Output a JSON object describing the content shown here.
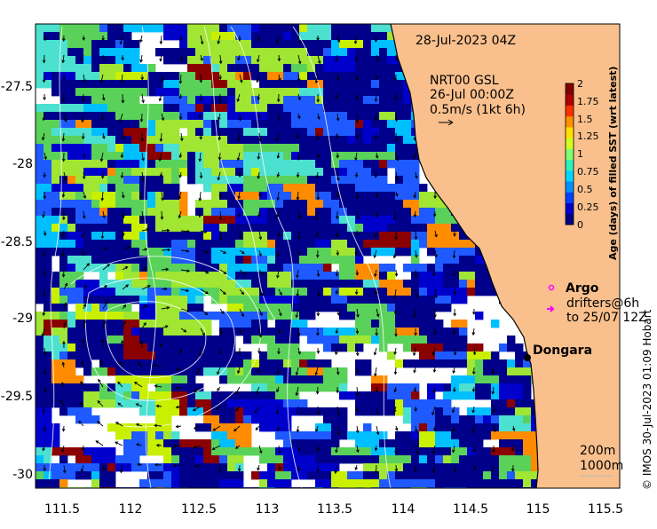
{
  "map": {
    "timestamp": "28-Jul-2023 04Z",
    "currents_source": "NRT00 GSL",
    "currents_time": "26-Jul 00:00Z",
    "vector_scale_label": "0.5m/s (1kt 6h)",
    "credit": "© IMOS 30-Jul-2023 01:09 Hobart",
    "land_color": "#f9c08d",
    "ocean_color": "#ffffff"
  },
  "axes": {
    "x_ticks": [
      "111.5",
      "112",
      "112.5",
      "113",
      "113.5",
      "114",
      "114.5",
      "115",
      "115.5"
    ],
    "y_ticks": [
      "-27.5",
      "-28",
      "-28.5",
      "-29",
      "-29.5",
      "-30"
    ]
  },
  "colorbar": {
    "label": "Age (days) of filled SST (wrt latest)",
    "ticks": [
      "2",
      "1.75",
      "1.5",
      "1.25",
      "1",
      "0.75",
      "0.5",
      "0.25",
      "0"
    ],
    "range": [
      0,
      2
    ],
    "colors": [
      "#000080",
      "#0000c8",
      "#0040ff",
      "#0090ff",
      "#00d8ff",
      "#30f0c0",
      "#80ff70",
      "#d0ff20",
      "#ffe000",
      "#ff9000",
      "#ff3000",
      "#b00000",
      "#800000"
    ]
  },
  "legend": {
    "argo_label": "Argo",
    "drifters_label": "drifters@6h",
    "drifters_time": "to 25/07 12Z",
    "argo_color": "#ff00ff",
    "drifter_color": "#ff00ff"
  },
  "places": [
    {
      "name": "Dongara",
      "lon": 114.93,
      "lat": -29.25
    }
  ],
  "isobaths": {
    "label_200": "200m",
    "label_1000": "1000m"
  },
  "sst_age_palette": [
    "#00008b",
    "#0000cd",
    "#1e5aff",
    "#00bfff",
    "#4ce0d0",
    "#5ad25a",
    "#a0e632",
    "#c8f000",
    "#ff8c00",
    "#8b0000",
    "#ffffff"
  ]
}
